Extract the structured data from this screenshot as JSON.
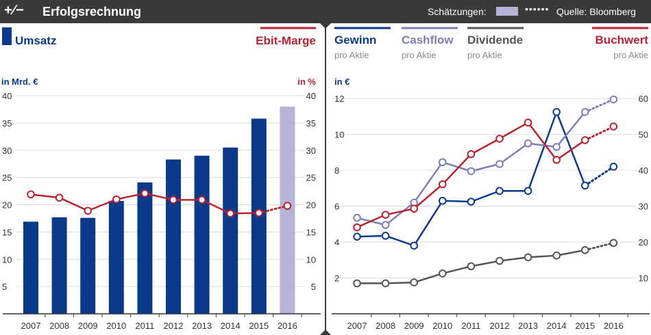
{
  "header": {
    "icon": "+∕−",
    "title": "Erfolgsrechnung",
    "estimates_label": "Schätzungen:",
    "estimate_dots": "••••••",
    "source": "Quelle: Bloomberg",
    "swatch_color": "#b6b4d6"
  },
  "colors": {
    "blue": "#0b3a8a",
    "red": "#bb2231",
    "lavender": "#7a7fb8",
    "gray": "#555555",
    "estimate_bar": "#b6b4d6",
    "grid": "#d9d9d9",
    "axis": "#333333"
  },
  "chart_data": [
    {
      "type": "bar",
      "title": "Erfolgsrechnung",
      "legend": [
        {
          "name": "Umsatz",
          "kind": "bar"
        },
        {
          "name": "Ebit-Marge",
          "kind": "line"
        }
      ],
      "ylabel_left": "in Mrd. €",
      "ylabel_right": "in %",
      "ylim": [
        0,
        40
      ],
      "yticks": [
        5,
        10,
        15,
        20,
        25,
        30,
        35,
        40
      ],
      "categories": [
        "2007",
        "2008",
        "2009",
        "2010",
        "2011",
        "2012",
        "2013",
        "2014",
        "2015",
        "2016"
      ],
      "series": [
        {
          "name": "Umsatz",
          "type": "bar",
          "axis": "left",
          "values": [
            16.9,
            17.7,
            17.6,
            20.7,
            24.1,
            28.3,
            29.0,
            30.5,
            35.8,
            38.0
          ],
          "estimate_from_index": 9
        },
        {
          "name": "Ebit-Marge",
          "type": "line",
          "axis": "right",
          "values": [
            21.9,
            21.3,
            18.9,
            21.0,
            22.1,
            20.9,
            20.9,
            18.4,
            18.5,
            19.8
          ],
          "estimate_from_index": 8
        }
      ]
    },
    {
      "type": "line",
      "legend": [
        {
          "name": "Gewinn",
          "sub": "pro Aktie"
        },
        {
          "name": "Cashflow",
          "sub": "pro Aktie"
        },
        {
          "name": "Dividende",
          "sub": "pro Aktie"
        },
        {
          "name": "Buchwert",
          "sub": "pro Aktie"
        }
      ],
      "ylabel_left": "in €",
      "ylim_left": [
        0,
        12.5
      ],
      "yticks_left": [
        2,
        4,
        6,
        8,
        10,
        12
      ],
      "ylim_right": [
        0,
        62.5
      ],
      "yticks_right": [
        10,
        20,
        30,
        40,
        50,
        60
      ],
      "categories": [
        "2007",
        "2008",
        "2009",
        "2010",
        "2011",
        "2012",
        "2013",
        "2014",
        "2015",
        "2016"
      ],
      "series": [
        {
          "name": "Gewinn",
          "axis": "left",
          "values": [
            4.3,
            4.35,
            3.8,
            6.3,
            6.25,
            6.85,
            6.85,
            11.25,
            7.15,
            8.2
          ],
          "estimate_from_index": 8
        },
        {
          "name": "Cashflow",
          "axis": "left",
          "values": [
            5.35,
            4.95,
            6.2,
            8.45,
            7.95,
            8.35,
            9.5,
            9.3,
            11.25,
            11.95
          ],
          "estimate_from_index": 8
        },
        {
          "name": "Dividende",
          "axis": "left",
          "values": [
            1.7,
            1.7,
            1.75,
            2.25,
            2.65,
            2.95,
            3.15,
            3.25,
            3.55,
            3.95
          ],
          "estimate_from_index": 8
        },
        {
          "name": "Buchwert",
          "axis": "right",
          "values": [
            24.1,
            27.6,
            29.3,
            36.1,
            44.5,
            48.8,
            53.3,
            42.9,
            48.4,
            52.2
          ],
          "estimate_from_index": 8
        }
      ]
    }
  ]
}
